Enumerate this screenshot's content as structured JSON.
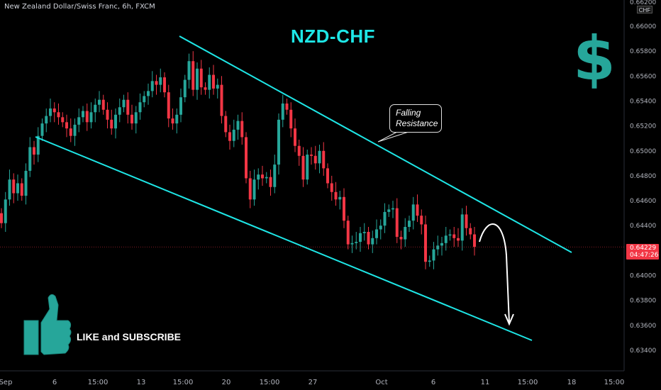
{
  "header": {
    "symbol_line": "New Zealand Dollar/Swiss Franc, 6h, FXCM",
    "currency_badge": "CHF"
  },
  "annotations": {
    "title": "NZD-CHF",
    "callout": [
      "Falling",
      "Resistance"
    ],
    "subscribe": "LIKE and SUBSCRIBE"
  },
  "price_badge": {
    "price": "0.64229",
    "countdown": "04:47:26",
    "color": "#f23645"
  },
  "icons": {
    "dollar": "dollar-sign-icon",
    "thumb": "thumbs-up-icon"
  },
  "colors": {
    "up": "#26a69a",
    "down": "#f23645",
    "channel": "#1ee6e6",
    "background": "#000000"
  },
  "chart_data": {
    "type": "candlestick",
    "timeframe": "6h",
    "y_axis": {
      "ticks": [
        0.634,
        0.636,
        0.638,
        0.64,
        0.642,
        0.644,
        0.646,
        0.648,
        0.65,
        0.652,
        0.654,
        0.656,
        0.658,
        0.66
      ],
      "top_partial_label": "0.66200",
      "ylim": [
        0.6333,
        0.6608
      ]
    },
    "x_axis": {
      "ticks": [
        "Sep",
        "6",
        "15:00",
        "13",
        "15:00",
        "20",
        "15:00",
        "27",
        "Oct",
        "6",
        "11",
        "15:00",
        "18",
        "15:00"
      ]
    },
    "close_series": [
      0.6442,
      0.6461,
      0.6477,
      0.6466,
      0.6474,
      0.6464,
      0.6484,
      0.6503,
      0.6497,
      0.6512,
      0.6522,
      0.6528,
      0.6534,
      0.6531,
      0.6527,
      0.6523,
      0.6518,
      0.6512,
      0.6521,
      0.6527,
      0.6532,
      0.6523,
      0.6531,
      0.6537,
      0.6541,
      0.6533,
      0.6525,
      0.6518,
      0.6529,
      0.6535,
      0.6541,
      0.6529,
      0.6522,
      0.6531,
      0.6539,
      0.6544,
      0.6548,
      0.6556,
      0.6553,
      0.6559,
      0.6547,
      0.6526,
      0.6522,
      0.6529,
      0.6543,
      0.6557,
      0.6572,
      0.6549,
      0.6566,
      0.6551,
      0.6549,
      0.6561,
      0.655,
      0.6553,
      0.6528,
      0.6515,
      0.6508,
      0.6517,
      0.6524,
      0.6511,
      0.6478,
      0.6461,
      0.6477,
      0.6481,
      0.6478,
      0.6479,
      0.6471,
      0.6489,
      0.6525,
      0.6538,
      0.6533,
      0.6518,
      0.6504,
      0.6496,
      0.6477,
      0.6497,
      0.6496,
      0.649,
      0.65,
      0.6486,
      0.6474,
      0.6467,
      0.6461,
      0.6463,
      0.6444,
      0.6425,
      0.6426,
      0.6427,
      0.6434,
      0.6435,
      0.6425,
      0.643,
      0.6437,
      0.644,
      0.6451,
      0.6453,
      0.6454,
      0.6431,
      0.6429,
      0.6439,
      0.6444,
      0.6457,
      0.6448,
      0.6441,
      0.6411,
      0.6412,
      0.6421,
      0.6424,
      0.6426,
      0.6432,
      0.6433,
      0.643,
      0.6428,
      0.6449,
      0.6438,
      0.6433,
      0.6423
    ],
    "channel": {
      "upper": [
        [
          "early Sep 13",
          0.6595
        ],
        [
          "mid Oct 15",
          0.642
        ]
      ],
      "lower": [
        [
          "Sep 6",
          0.6518
        ],
        [
          "Oct 15",
          0.6352
        ]
      ]
    },
    "last_price": 0.64229,
    "projection": "expected drop toward lower channel line near 0.6370"
  }
}
